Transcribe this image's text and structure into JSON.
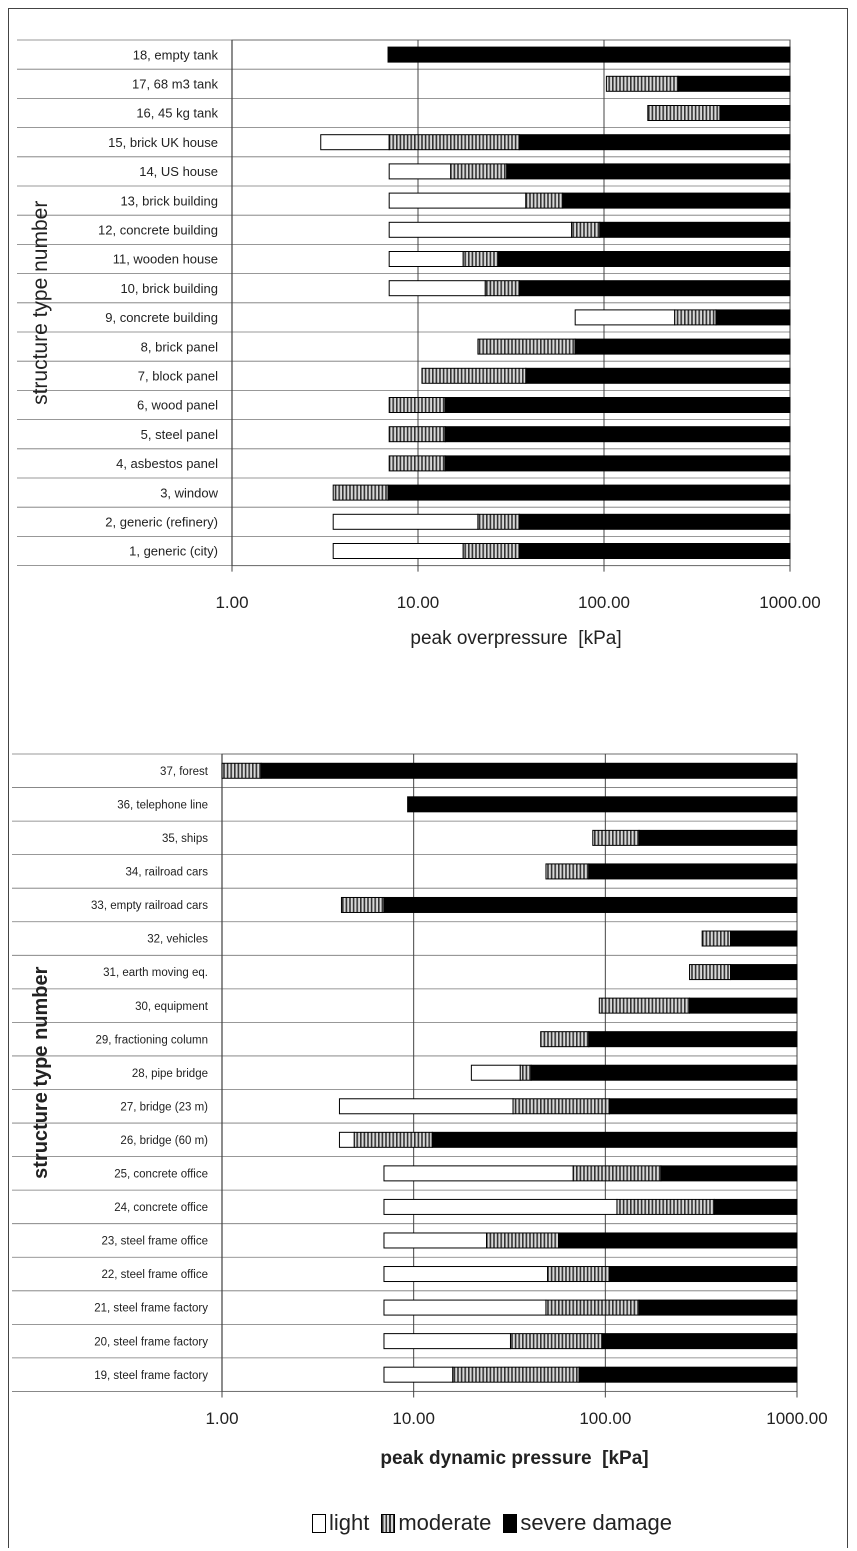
{
  "legend": {
    "light": "light",
    "moderate": "moderate",
    "severe": "severe damage"
  },
  "colors": {
    "light": "#ffffff",
    "moderate_stripe_dark": "#333333",
    "moderate_stripe_light": "#d8d8d8",
    "severe": "#000000"
  },
  "chart_data": [
    {
      "type": "bar",
      "orientation": "horizontal",
      "stacked": true,
      "x_scale": "log",
      "xlim": [
        1,
        1000
      ],
      "xticks": [
        "1.00",
        "10.00",
        "100.00",
        "1000.00"
      ],
      "xlabel": "peak overpressure  [kPa]",
      "ylabel": "structure type number",
      "grid": true,
      "rows": [
        {
          "label": "18, empty tank",
          "light_start": null,
          "moderate_start": null,
          "severe_start": 6.9,
          "end": 1000
        },
        {
          "label": "17, 68 m3 tank",
          "light_start": null,
          "moderate_start": 103,
          "severe_start": 250,
          "end": 1000
        },
        {
          "label": "16, 45 kg tank",
          "light_start": null,
          "moderate_start": 172,
          "severe_start": 420,
          "end": 1000
        },
        {
          "label": "15, brick UK house",
          "light_start": 3,
          "moderate_start": 7,
          "severe_start": 35,
          "end": 1000
        },
        {
          "label": "14, US house",
          "light_start": 7,
          "moderate_start": 15,
          "severe_start": 30,
          "end": 1000
        },
        {
          "label": "13, brick building",
          "light_start": 7,
          "moderate_start": 38,
          "severe_start": 60,
          "end": 1000
        },
        {
          "label": "12, concrete building",
          "light_start": 7,
          "moderate_start": 67,
          "severe_start": 95,
          "end": 1000
        },
        {
          "label": "11, wooden house",
          "light_start": 7,
          "moderate_start": 17.5,
          "severe_start": 27,
          "end": 1000
        },
        {
          "label": "10, brick building",
          "light_start": 7,
          "moderate_start": 23,
          "severe_start": 35,
          "end": 1000
        },
        {
          "label": "9, concrete building",
          "light_start": 70,
          "moderate_start": 240,
          "severe_start": 400,
          "end": 1000
        },
        {
          "label": "8, brick panel",
          "light_start": null,
          "moderate_start": 21,
          "severe_start": 70,
          "end": 1000
        },
        {
          "label": "7, block panel",
          "light_start": null,
          "moderate_start": 10.5,
          "severe_start": 38,
          "end": 1000
        },
        {
          "label": "6, wood panel",
          "light_start": null,
          "moderate_start": 7,
          "severe_start": 14,
          "end": 1000
        },
        {
          "label": "5, steel panel",
          "light_start": null,
          "moderate_start": 7,
          "severe_start": 14,
          "end": 1000
        },
        {
          "label": "4, asbestos panel",
          "light_start": null,
          "moderate_start": 7,
          "severe_start": 14,
          "end": 1000
        },
        {
          "label": "3, window",
          "light_start": null,
          "moderate_start": 3.5,
          "severe_start": 6.9,
          "end": 1000
        },
        {
          "label": "2, generic (refinery)",
          "light_start": 3.5,
          "moderate_start": 21,
          "severe_start": 35,
          "end": 1000
        },
        {
          "label": "1, generic (city)",
          "light_start": 3.5,
          "moderate_start": 17.5,
          "severe_start": 35,
          "end": 1000
        }
      ]
    },
    {
      "type": "bar",
      "orientation": "horizontal",
      "stacked": true,
      "x_scale": "log",
      "xlim": [
        1,
        1000
      ],
      "xticks": [
        "1.00",
        "10.00",
        "100.00",
        "1000.00"
      ],
      "xlabel": "peak dynamic pressure  [kPa]",
      "ylabel": "structure type number",
      "grid": true,
      "rows": [
        {
          "label": "37, forest",
          "light_start": null,
          "moderate_start": 1,
          "severe_start": 1.6,
          "end": 1000
        },
        {
          "label": "36, telephone line",
          "light_start": null,
          "moderate_start": null,
          "severe_start": 9.3,
          "end": 1000
        },
        {
          "label": "35, ships",
          "light_start": null,
          "moderate_start": 86,
          "severe_start": 150,
          "end": 1000
        },
        {
          "label": "34, railroad cars",
          "light_start": null,
          "moderate_start": 49,
          "severe_start": 82,
          "end": 1000
        },
        {
          "label": "33, empty railroad cars",
          "light_start": null,
          "moderate_start": 4.2,
          "severe_start": 7,
          "end": 1000
        },
        {
          "label": "32, vehicles",
          "light_start": null,
          "moderate_start": 320,
          "severe_start": 450,
          "end": 1000
        },
        {
          "label": "31, earth moving eq.",
          "light_start": null,
          "moderate_start": 275,
          "severe_start": 450,
          "end": 1000
        },
        {
          "label": "30, equipment",
          "light_start": null,
          "moderate_start": 93,
          "severe_start": 275,
          "end": 1000
        },
        {
          "label": "29, fractioning column",
          "light_start": null,
          "moderate_start": 46,
          "severe_start": 82,
          "end": 1000
        },
        {
          "label": "28, pipe bridge",
          "light_start": 20,
          "moderate_start": 36,
          "severe_start": 41,
          "end": 1000
        },
        {
          "label": "27, bridge (23 m)",
          "light_start": 4.1,
          "moderate_start": 33,
          "severe_start": 105,
          "end": 1000
        },
        {
          "label": "26, bridge (60 m)",
          "light_start": 4.1,
          "moderate_start": 4.9,
          "severe_start": 12.5,
          "end": 1000
        },
        {
          "label": "25, concrete office",
          "light_start": 7,
          "moderate_start": 68,
          "severe_start": 195,
          "end": 1000
        },
        {
          "label": "24, concrete office",
          "light_start": 7,
          "moderate_start": 115,
          "severe_start": 370,
          "end": 1000
        },
        {
          "label": "23, steel frame office",
          "light_start": 7,
          "moderate_start": 24,
          "severe_start": 57,
          "end": 1000
        },
        {
          "label": "22, steel frame office",
          "light_start": 7,
          "moderate_start": 50,
          "severe_start": 105,
          "end": 1000
        },
        {
          "label": "21, steel frame factory",
          "light_start": 7,
          "moderate_start": 49,
          "severe_start": 150,
          "end": 1000
        },
        {
          "label": "20, steel frame factory",
          "light_start": 7,
          "moderate_start": 32,
          "severe_start": 96,
          "end": 1000
        },
        {
          "label": "19, steel frame factory",
          "light_start": 7,
          "moderate_start": 16,
          "severe_start": 73,
          "end": 1000
        }
      ]
    }
  ]
}
